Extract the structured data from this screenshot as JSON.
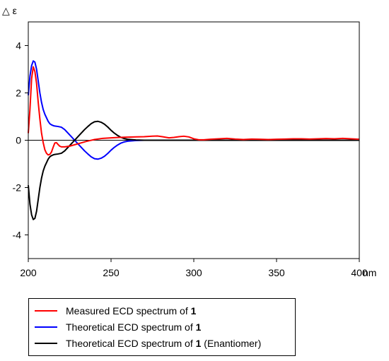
{
  "chart_data": {
    "type": "line",
    "ylabel": "△ ε",
    "xunit": "nm",
    "xlim": [
      200,
      400
    ],
    "ylim": [
      -5,
      5
    ],
    "xticks": [
      "200",
      "250",
      "300",
      "350",
      "400"
    ],
    "yticks": [
      "4",
      "2",
      "0",
      "-2",
      "-4"
    ],
    "grid": false,
    "legend_position": "bottom",
    "series": [
      {
        "name_prefix": "Measured ECD spectrum of ",
        "name_bold": "1",
        "name_suffix": "",
        "color": "#ff0000",
        "points": [
          [
            200,
            0.3
          ],
          [
            201,
            1.3
          ],
          [
            202,
            2.6
          ],
          [
            203,
            3.1
          ],
          [
            204,
            2.9
          ],
          [
            205,
            2.4
          ],
          [
            206,
            1.6
          ],
          [
            207,
            0.9
          ],
          [
            208,
            0.3
          ],
          [
            209,
            -0.1
          ],
          [
            210,
            -0.4
          ],
          [
            211,
            -0.55
          ],
          [
            212,
            -0.62
          ],
          [
            213,
            -0.6
          ],
          [
            214,
            -0.5
          ],
          [
            215,
            -0.3
          ],
          [
            216,
            -0.12
          ],
          [
            217,
            -0.1
          ],
          [
            218,
            -0.18
          ],
          [
            219,
            -0.25
          ],
          [
            220,
            -0.28
          ],
          [
            222,
            -0.28
          ],
          [
            225,
            -0.25
          ],
          [
            230,
            -0.15
          ],
          [
            235,
            -0.05
          ],
          [
            240,
            0.03
          ],
          [
            245,
            0.08
          ],
          [
            250,
            0.1
          ],
          [
            255,
            0.12
          ],
          [
            260,
            0.13
          ],
          [
            265,
            0.14
          ],
          [
            270,
            0.15
          ],
          [
            275,
            0.17
          ],
          [
            278,
            0.18
          ],
          [
            281,
            0.15
          ],
          [
            285,
            0.1
          ],
          [
            288,
            0.12
          ],
          [
            291,
            0.15
          ],
          [
            294,
            0.17
          ],
          [
            297,
            0.14
          ],
          [
            300,
            0.06
          ],
          [
            303,
            0.02
          ],
          [
            306,
            0.02
          ],
          [
            310,
            0.04
          ],
          [
            315,
            0.06
          ],
          [
            320,
            0.08
          ],
          [
            325,
            0.05
          ],
          [
            330,
            0.03
          ],
          [
            335,
            0.05
          ],
          [
            340,
            0.04
          ],
          [
            345,
            0.03
          ],
          [
            350,
            0.04
          ],
          [
            355,
            0.05
          ],
          [
            360,
            0.06
          ],
          [
            365,
            0.06
          ],
          [
            370,
            0.05
          ],
          [
            375,
            0.06
          ],
          [
            380,
            0.07
          ],
          [
            385,
            0.06
          ],
          [
            390,
            0.08
          ],
          [
            395,
            0.06
          ],
          [
            400,
            0.04
          ]
        ]
      },
      {
        "name_prefix": "Theoretical ECD spectrum of ",
        "name_bold": "1",
        "name_suffix": "",
        "color": "#0000ff",
        "points": [
          [
            200,
            1.9
          ],
          [
            201,
            2.7
          ],
          [
            202,
            3.15
          ],
          [
            203,
            3.35
          ],
          [
            204,
            3.3
          ],
          [
            205,
            3.0
          ],
          [
            206,
            2.5
          ],
          [
            207,
            2.0
          ],
          [
            208,
            1.6
          ],
          [
            209,
            1.3
          ],
          [
            210,
            1.1
          ],
          [
            211,
            0.95
          ],
          [
            212,
            0.8
          ],
          [
            213,
            0.7
          ],
          [
            214,
            0.65
          ],
          [
            215,
            0.62
          ],
          [
            216,
            0.6
          ],
          [
            218,
            0.58
          ],
          [
            220,
            0.55
          ],
          [
            222,
            0.45
          ],
          [
            224,
            0.3
          ],
          [
            226,
            0.15
          ],
          [
            228,
            0.0
          ],
          [
            230,
            -0.15
          ],
          [
            232,
            -0.3
          ],
          [
            234,
            -0.45
          ],
          [
            236,
            -0.58
          ],
          [
            238,
            -0.7
          ],
          [
            240,
            -0.78
          ],
          [
            242,
            -0.8
          ],
          [
            244,
            -0.76
          ],
          [
            246,
            -0.68
          ],
          [
            248,
            -0.56
          ],
          [
            250,
            -0.42
          ],
          [
            252,
            -0.3
          ],
          [
            254,
            -0.2
          ],
          [
            256,
            -0.12
          ],
          [
            258,
            -0.07
          ],
          [
            260,
            -0.04
          ],
          [
            265,
            -0.01
          ],
          [
            270,
            0.0
          ],
          [
            280,
            0.0
          ],
          [
            300,
            0.0
          ],
          [
            350,
            0.0
          ],
          [
            400,
            0.0
          ]
        ]
      },
      {
        "name_prefix": "Theoretical ECD spectrum of ",
        "name_bold": "1",
        "name_suffix": " (Enantiomer)",
        "color": "#000000",
        "points": [
          [
            200,
            -1.9
          ],
          [
            201,
            -2.7
          ],
          [
            202,
            -3.15
          ],
          [
            203,
            -3.35
          ],
          [
            204,
            -3.3
          ],
          [
            205,
            -3.0
          ],
          [
            206,
            -2.5
          ],
          [
            207,
            -2.0
          ],
          [
            208,
            -1.6
          ],
          [
            209,
            -1.3
          ],
          [
            210,
            -1.1
          ],
          [
            211,
            -0.95
          ],
          [
            212,
            -0.8
          ],
          [
            213,
            -0.7
          ],
          [
            214,
            -0.65
          ],
          [
            215,
            -0.62
          ],
          [
            216,
            -0.6
          ],
          [
            218,
            -0.58
          ],
          [
            220,
            -0.55
          ],
          [
            222,
            -0.45
          ],
          [
            224,
            -0.3
          ],
          [
            226,
            -0.15
          ],
          [
            228,
            0.0
          ],
          [
            230,
            0.15
          ],
          [
            232,
            0.3
          ],
          [
            234,
            0.45
          ],
          [
            236,
            0.58
          ],
          [
            238,
            0.7
          ],
          [
            240,
            0.78
          ],
          [
            242,
            0.8
          ],
          [
            244,
            0.76
          ],
          [
            246,
            0.68
          ],
          [
            248,
            0.56
          ],
          [
            250,
            0.42
          ],
          [
            252,
            0.3
          ],
          [
            254,
            0.2
          ],
          [
            256,
            0.12
          ],
          [
            258,
            0.07
          ],
          [
            260,
            0.04
          ],
          [
            265,
            0.01
          ],
          [
            270,
            0.0
          ],
          [
            280,
            0.0
          ],
          [
            300,
            0.0
          ],
          [
            350,
            0.0
          ],
          [
            400,
            0.0
          ]
        ]
      }
    ]
  }
}
